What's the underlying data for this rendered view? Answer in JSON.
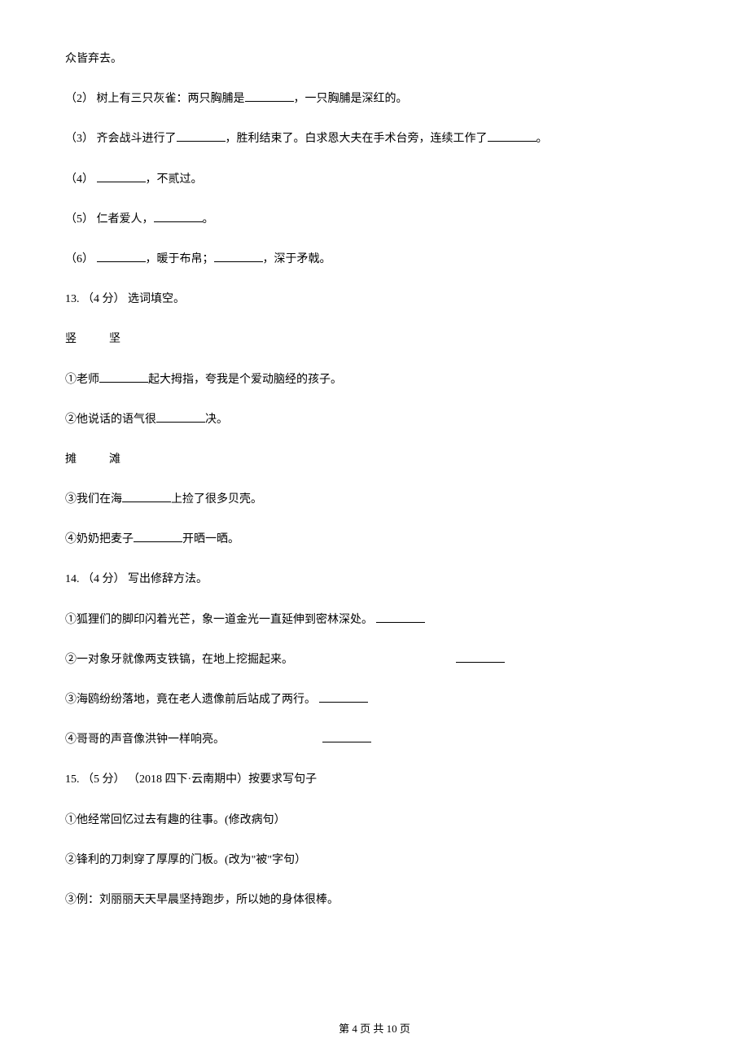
{
  "page": {
    "background_color": "#ffffff",
    "text_color": "#000000",
    "font_family": "SimSun",
    "body_fontsize": 14,
    "line_spacing": 1.8
  },
  "lines": {
    "l0": "众皆弃去。",
    "q2_prefix": "（2）  树上有三只灰雀：两只胸脯是",
    "q2_suffix": "，一只胸脯是深红的。",
    "q3_prefix": "（3）  齐会战斗进行了",
    "q3_mid": "，胜利结束了。白求恩大夫在手术台旁，连续工作了",
    "q3_suffix": "。",
    "q4_prefix": "（4）  ",
    "q4_suffix": "，不贰过。",
    "q5_prefix": "（5）  仁者爱人，",
    "q5_suffix": "。",
    "q6_prefix": "（6）  ",
    "q6_mid1": "，暖于布帛；",
    "q6_mid2": "，深于矛戟。",
    "q13_header": "13.  （4 分）  选词填空。",
    "q13_pair1_a": "竖",
    "q13_pair1_b": "坚",
    "q13_1_prefix": "①老师",
    "q13_1_suffix": "起大拇指，夸我是个爱动脑经的孩子。",
    "q13_2_prefix": "②他说话的语气很",
    "q13_2_suffix": "决。",
    "q13_pair2_a": "摊",
    "q13_pair2_b": "滩",
    "q13_3_prefix": "③我们在海",
    "q13_3_suffix": "上捡了很多贝壳。",
    "q13_4_prefix": "④奶奶把麦子",
    "q13_4_suffix": "开晒一晒。",
    "q14_header": "14.  （4 分）  写出修辞方法。",
    "q14_1": "①狐狸们的脚印闪着光芒，象一道金光一直延伸到密林深处。 ",
    "q14_2": "②一对象牙就像两支铁镐，在地上挖掘起来。",
    "q14_3": "③海鸥纷纷落地，竟在老人遗像前后站成了两行。 ",
    "q14_4": "④哥哥的声音像洪钟一样响亮。",
    "q15_header": "15.  （5 分） （2018 四下·云南期中）按要求写句子",
    "q15_1": "①他经常回忆过去有趣的往事。(修改病句）",
    "q15_2": "②锋利的刀刺穿了厚厚的门板。(改为\"被\"字句）",
    "q15_3": "③例：刘丽丽天天早晨坚持跑步，所以她的身体很棒。"
  },
  "pager": {
    "text": "第 4 页 共 10 页",
    "fontsize": 13
  }
}
